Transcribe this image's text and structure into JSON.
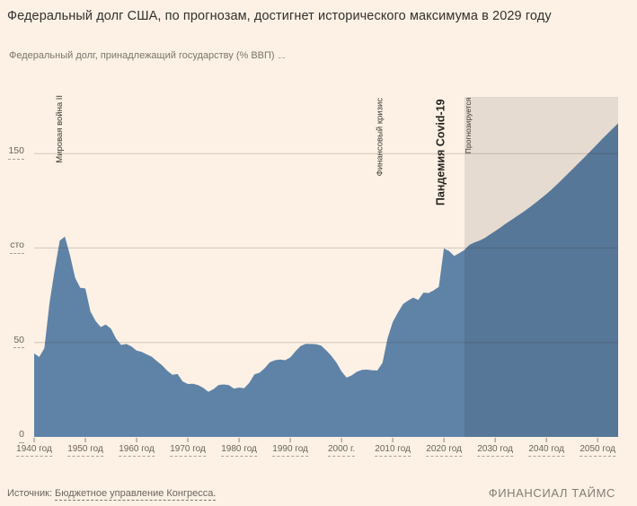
{
  "page": {
    "title": "Федеральный долг США, по прогнозам, достигнет исторического максимума в 2029 году",
    "subtitle": "Федеральный долг, принадлежащий государству (% ВВП)",
    "source_prefix": "Источник:",
    "source_text": "Бюджетное управление Конгресса.",
    "brand": "ФИНАНСИАЛ ТАЙМС"
  },
  "colors": {
    "background": "#fdf1e5",
    "area_fill": "#5f83a7",
    "forecast_overlay": "rgba(0,0,0,0.09)",
    "gridline": "rgba(60,52,44,0.22)",
    "tick": "#8d8579",
    "title_text": "#33302e",
    "muted_text": "#6a6359",
    "subtitle_text": "#7b746b",
    "annotation_text": "#3d3933",
    "annotation_bold_text": "#26231f"
  },
  "chart_data": {
    "type": "area",
    "title": "Федеральный долг США, по прогнозам, достигнет исторического максимума в 2029 году",
    "ylabel": "Федеральный долг, принадлежащий государству (% ВВП)",
    "xlabel": "",
    "xlim": [
      1940,
      2054
    ],
    "ylim": [
      0,
      180
    ],
    "grid": "horizontal",
    "legend": "none",
    "forecast_start_year": 2024,
    "y_ticks": [
      {
        "value": 0,
        "label": "0"
      },
      {
        "value": 50,
        "label": "50"
      },
      {
        "value": 100,
        "label": "сто"
      },
      {
        "value": 150,
        "label": "150"
      }
    ],
    "x_ticks": [
      {
        "year": 1940,
        "label": "1940 год"
      },
      {
        "year": 1950,
        "label": "1950 год"
      },
      {
        "year": 1960,
        "label": "1960 год"
      },
      {
        "year": 1970,
        "label": "1970 год"
      },
      {
        "year": 1980,
        "label": "1980 год"
      },
      {
        "year": 1990,
        "label": "1990 год"
      },
      {
        "year": 2000,
        "label": "2000 г."
      },
      {
        "year": 2010,
        "label": "2010 год"
      },
      {
        "year": 2020,
        "label": "2020 год"
      },
      {
        "year": 2030,
        "label": "2030 год"
      },
      {
        "year": 2040,
        "label": "2040 год"
      },
      {
        "year": 2050,
        "label": "2050 год"
      }
    ],
    "annotations": [
      {
        "id": "wwii",
        "text": "Мировая война II",
        "year": 1945.0,
        "bottom_value": 145,
        "size": 9.5,
        "weight": 400
      },
      {
        "id": "financial-crisis",
        "text": "Финансовый кризис",
        "year": 2007.5,
        "bottom_value": 138,
        "size": 9.5,
        "weight": 400
      },
      {
        "id": "covid-pandemic",
        "text": "Пандемия Covid-19",
        "year": 2019.5,
        "bottom_value": 122.5,
        "size": 12.5,
        "weight": 700
      },
      {
        "id": "forecast-label",
        "text": "Прогнозируется",
        "year": 2024.8,
        "bottom_value": 150,
        "size": 8.5,
        "weight": 500
      }
    ],
    "series": [
      {
        "name": "Федеральный долг (% ВВП)",
        "points": [
          [
            1940,
            44.2
          ],
          [
            1941,
            42.3
          ],
          [
            1942,
            47.0
          ],
          [
            1943,
            70.9
          ],
          [
            1944,
            88.3
          ],
          [
            1945,
            103.9
          ],
          [
            1946,
            106.1
          ],
          [
            1947,
            96.2
          ],
          [
            1948,
            84.3
          ],
          [
            1949,
            79.0
          ],
          [
            1950,
            78.6
          ],
          [
            1951,
            66.4
          ],
          [
            1952,
            61.4
          ],
          [
            1953,
            58.2
          ],
          [
            1954,
            59.5
          ],
          [
            1955,
            57.3
          ],
          [
            1956,
            52.0
          ],
          [
            1957,
            48.7
          ],
          [
            1958,
            49.2
          ],
          [
            1959,
            47.9
          ],
          [
            1960,
            45.7
          ],
          [
            1961,
            45.0
          ],
          [
            1962,
            43.7
          ],
          [
            1963,
            42.4
          ],
          [
            1964,
            40.1
          ],
          [
            1965,
            37.9
          ],
          [
            1966,
            35.0
          ],
          [
            1967,
            32.9
          ],
          [
            1968,
            33.3
          ],
          [
            1969,
            29.3
          ],
          [
            1970,
            28.0
          ],
          [
            1971,
            28.1
          ],
          [
            1972,
            27.4
          ],
          [
            1973,
            26.0
          ],
          [
            1974,
            23.9
          ],
          [
            1975,
            25.3
          ],
          [
            1976,
            27.5
          ],
          [
            1977,
            27.8
          ],
          [
            1978,
            27.4
          ],
          [
            1979,
            25.6
          ],
          [
            1980,
            26.1
          ],
          [
            1981,
            25.8
          ],
          [
            1982,
            28.7
          ],
          [
            1983,
            33.1
          ],
          [
            1984,
            34.0
          ],
          [
            1985,
            36.4
          ],
          [
            1986,
            39.5
          ],
          [
            1987,
            40.6
          ],
          [
            1988,
            41.0
          ],
          [
            1989,
            40.6
          ],
          [
            1990,
            42.1
          ],
          [
            1991,
            45.3
          ],
          [
            1992,
            48.1
          ],
          [
            1993,
            49.3
          ],
          [
            1994,
            49.2
          ],
          [
            1995,
            49.1
          ],
          [
            1996,
            48.4
          ],
          [
            1997,
            45.9
          ],
          [
            1998,
            43.0
          ],
          [
            1999,
            39.4
          ],
          [
            2000,
            34.7
          ],
          [
            2001,
            31.4
          ],
          [
            2002,
            32.6
          ],
          [
            2003,
            34.5
          ],
          [
            2004,
            35.5
          ],
          [
            2005,
            35.6
          ],
          [
            2006,
            35.3
          ],
          [
            2007,
            35.2
          ],
          [
            2008,
            39.2
          ],
          [
            2009,
            52.3
          ],
          [
            2010,
            60.8
          ],
          [
            2011,
            65.8
          ],
          [
            2012,
            70.3
          ],
          [
            2013,
            72.2
          ],
          [
            2014,
            73.7
          ],
          [
            2015,
            72.5
          ],
          [
            2016,
            76.4
          ],
          [
            2017,
            76.2
          ],
          [
            2018,
            77.6
          ],
          [
            2019,
            79.4
          ],
          [
            2020,
            99.8
          ],
          [
            2021,
            98.4
          ],
          [
            2022,
            95.8
          ],
          [
            2023,
            97.3
          ],
          [
            2024,
            99.0
          ],
          [
            2025,
            101.7
          ],
          [
            2026,
            103.0
          ],
          [
            2027,
            104.0
          ],
          [
            2028,
            105.4
          ],
          [
            2029,
            107.2
          ],
          [
            2030,
            109.0
          ],
          [
            2031,
            110.8
          ],
          [
            2032,
            112.8
          ],
          [
            2033,
            114.6
          ],
          [
            2034,
            116.4
          ],
          [
            2035,
            118.2
          ],
          [
            2036,
            120.1
          ],
          [
            2037,
            122.1
          ],
          [
            2038,
            124.2
          ],
          [
            2039,
            126.4
          ],
          [
            2040,
            128.6
          ],
          [
            2041,
            131.0
          ],
          [
            2042,
            133.5
          ],
          [
            2043,
            136.1
          ],
          [
            2044,
            138.8
          ],
          [
            2045,
            141.5
          ],
          [
            2046,
            144.2
          ],
          [
            2047,
            146.9
          ],
          [
            2048,
            149.6
          ],
          [
            2049,
            152.4
          ],
          [
            2050,
            155.2
          ],
          [
            2051,
            158.0
          ],
          [
            2052,
            160.7
          ],
          [
            2053,
            163.4
          ],
          [
            2054,
            166.0
          ]
        ]
      }
    ]
  }
}
